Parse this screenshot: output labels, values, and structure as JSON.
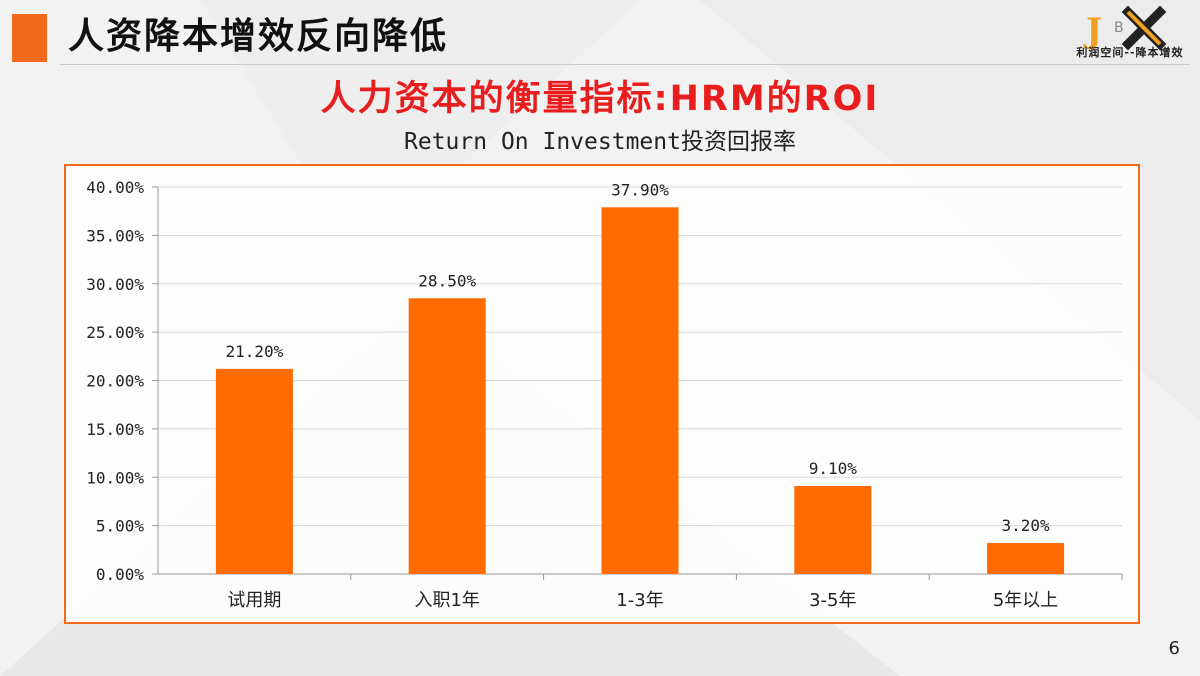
{
  "slide": {
    "header_title": "人资降本增效反向降低",
    "logo_letters": "JBX",
    "logo_subtitle": "利润空间--降本增效",
    "page_number": "6"
  },
  "colors": {
    "accent": "#f26a1b",
    "bar": "#ff6b00",
    "title_red": "#e81e1e"
  },
  "chart_data": {
    "type": "bar",
    "title": "人力资本的衡量指标:HRM的ROI",
    "subtitle": "Return On Investment投资回报率",
    "categories": [
      "试用期",
      "入职1年",
      "1-3年",
      "3-5年",
      "5年以上"
    ],
    "values": [
      21.2,
      28.5,
      37.9,
      9.1,
      3.2
    ],
    "data_labels": [
      "21.20%",
      "28.50%",
      "37.90%",
      "9.10%",
      "3.20%"
    ],
    "y_ticks": [
      "0.00%",
      "5.00%",
      "10.00%",
      "15.00%",
      "20.00%",
      "25.00%",
      "30.00%",
      "35.00%",
      "40.00%"
    ],
    "ylim": [
      0,
      40
    ],
    "y_unit": "%",
    "grid": true,
    "legend": "none"
  }
}
